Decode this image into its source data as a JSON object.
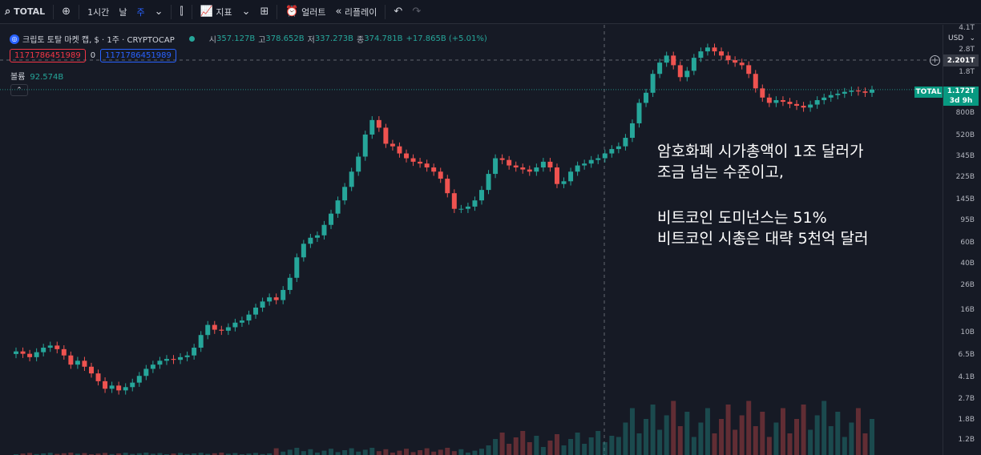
{
  "toolbar": {
    "symbol": "TOTAL",
    "interval": "1시간",
    "period_day": "날",
    "period_week": "주",
    "indicators_label": "지표",
    "alert_label": "얼러트",
    "replay_label": "리플레이"
  },
  "legend": {
    "title": "크립토 토탈 마켓 캡, $ · 1주 · CRYPTOCAP",
    "open_key": "시",
    "open": "357.127B",
    "high_key": "고",
    "high": "378.652B",
    "low_key": "저",
    "low": "337.273B",
    "close_key": "종",
    "close": "374.781B",
    "change": "+17.865B (+5.01%)"
  },
  "order": {
    "sell": "1171786451989",
    "spread": "0",
    "buy": "1171786451989"
  },
  "volume": {
    "label": "볼륨",
    "value": "92.574B"
  },
  "price_axis": {
    "currency": "USD",
    "top_partial": "4.1T",
    "crosshair_price": "2.201T",
    "last_symbol": "TOTAL",
    "last_price": "1.172T",
    "last_countdown": "3d 9h",
    "labels": [
      "2.8T",
      "1.8T",
      "800B",
      "520B",
      "345B",
      "225B",
      "145B",
      "95B",
      "60B",
      "40B",
      "26B",
      "16B",
      "10B",
      "6.5B",
      "4.1B",
      "2.7B",
      "1.8B",
      "1.2B"
    ]
  },
  "annotation": {
    "line1": "암호화폐 시가총액이 1조 달러가",
    "line2": "조금 넘는 수준이고,",
    "line3": "비트코인 도미넌스는 51%",
    "line4": "비트코인 시총은 대략 5천억 달러"
  },
  "colors": {
    "up": "#26a69a",
    "down": "#ef5350",
    "accent": "#2962ff",
    "background": "#161a25"
  },
  "chart_data": {
    "type": "candlestick",
    "scale": "log",
    "unit": "USD",
    "x_interval": "1주",
    "close_series": [
      6500000000.0,
      6200000000.0,
      5800000000.0,
      6400000000.0,
      7000000000.0,
      7300000000.0,
      6800000000.0,
      6000000000.0,
      5000000000.0,
      5400000000.0,
      4800000000.0,
      4200000000.0,
      3600000000.0,
      3100000000.0,
      3300000000.0,
      3000000000.0,
      3200000000.0,
      3500000000.0,
      4000000000.0,
      4600000000.0,
      5000000000.0,
      5400000000.0,
      5600000000.0,
      5500000000.0,
      5800000000.0,
      6000000000.0,
      7000000000.0,
      9000000000.0,
      11000000000.0,
      10000000000.0,
      9800000000.0,
      10500000000.0,
      11500000000.0,
      12000000000.0,
      13500000000.0,
      15500000000.0,
      17500000000.0,
      19000000000.0,
      18000000000.0,
      22000000000.0,
      28000000000.0,
      42000000000.0,
      55000000000.0,
      62000000000.0,
      65000000000.0,
      80000000000.0,
      100000000000.0,
      130000000000.0,
      170000000000.0,
      230000000000.0,
      310000000000.0,
      480000000000.0,
      640000000000.0,
      550000000000.0,
      400000000000.0,
      380000000000.0,
      330000000000.0,
      300000000000.0,
      280000000000.0,
      270000000000.0,
      250000000000.0,
      230000000000.0,
      200000000000.0,
      150000000000.0,
      110000000000.0,
      110000000000.0,
      115000000000.0,
      130000000000.0,
      160000000000.0,
      220000000000.0,
      300000000000.0,
      290000000000.0,
      260000000000.0,
      250000000000.0,
      240000000000.0,
      230000000000.0,
      250000000000.0,
      280000000000.0,
      250000000000.0,
      180000000000.0,
      190000000000.0,
      230000000000.0,
      260000000000.0,
      270000000000.0,
      290000000000.0,
      300000000000.0,
      330000000000.0,
      360000000000.0,
      380000000000.0,
      450000000000.0,
      600000000000.0,
      900000000000.0,
      1100000000000.0,
      1600000000000.0,
      2000000000000.0,
      2300000000000.0,
      1900000000000.0,
      1500000000000.0,
      1700000000000.0,
      2200000000000.0,
      2500000000000.0,
      2700000000000.0,
      2500000000000.0,
      2300000000000.0,
      2100000000000.0,
      2000000000000.0,
      1900000000000.0,
      1600000000000.0,
      1200000000000.0,
      1000000000000.0,
      900000000000.0,
      950000000000.0,
      920000000000.0,
      880000000000.0,
      850000000000.0,
      820000000000.0,
      870000000000.0,
      950000000000.0,
      1000000000000.0,
      1050000000000.0,
      1080000000000.0,
      1120000000000.0,
      1150000000000.0,
      1130000000000.0,
      1100000000000.0,
      1170000000000.0
    ]
  }
}
